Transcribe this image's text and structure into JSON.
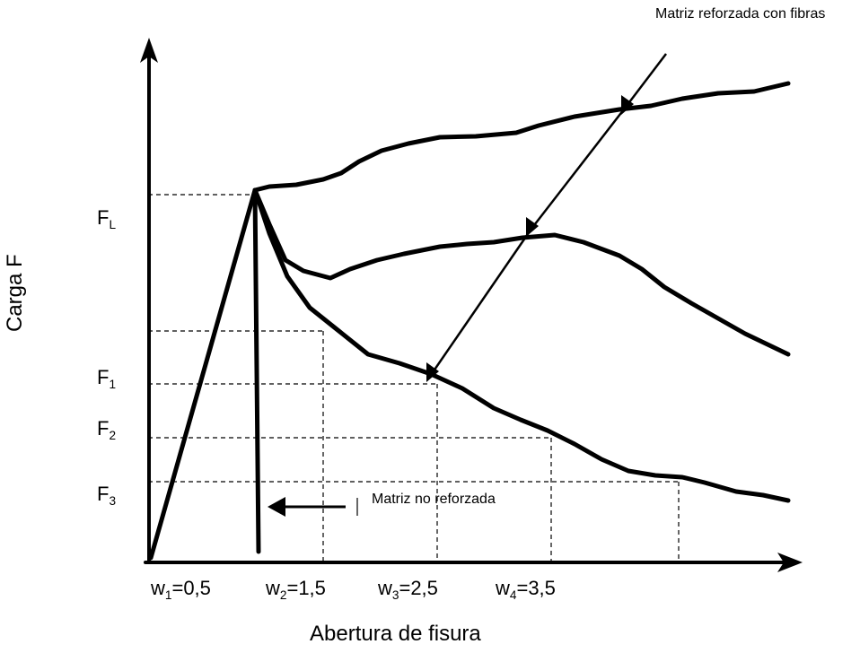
{
  "annotations": {
    "reinforced": "Matriz reforzada con fibras",
    "unreinforced": "Matriz no reforzada"
  },
  "axes": {
    "y_label": "Carga F",
    "x_label": "Abertura de fisura"
  },
  "y_ticks": [
    {
      "base": "F",
      "sub": "L"
    },
    {
      "base": "F",
      "sub": "1"
    },
    {
      "base": "F",
      "sub": "2"
    },
    {
      "base": "F",
      "sub": "3"
    }
  ],
  "x_ticks": [
    {
      "base": "w",
      "sub": "1",
      "value": "=0,5"
    },
    {
      "base": "w",
      "sub": "2",
      "value": "=1,5"
    },
    {
      "base": "w",
      "sub": "3",
      "value": "=2,5"
    },
    {
      "base": "w",
      "sub": "4",
      "value": "=3,5"
    }
  ],
  "colors": {
    "line": "#000000",
    "background": "#ffffff"
  }
}
